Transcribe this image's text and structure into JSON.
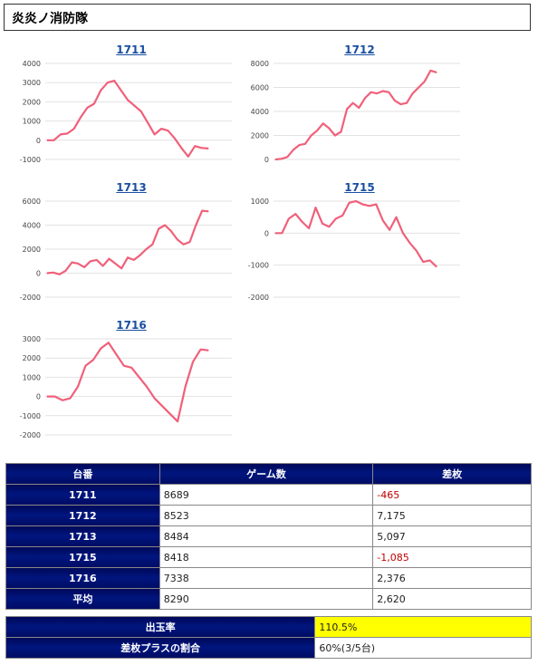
{
  "page_title": "炎炎ノ消防隊",
  "colors": {
    "line": "#f0607a",
    "header_bg": "#00157f",
    "highlight": "#ffff00",
    "negative": "#c00000"
  },
  "chart_data": [
    {
      "type": "line",
      "title": "1711",
      "ylim": [
        -1000,
        4000
      ],
      "yticks": [
        4000,
        3000,
        2000,
        1000,
        0,
        -1000
      ],
      "values": [
        0,
        0,
        300,
        350,
        600,
        1200,
        1700,
        1900,
        2600,
        3000,
        3100,
        2600,
        2100,
        1800,
        1500,
        900,
        300,
        600,
        500,
        100,
        -400,
        -850,
        -300,
        -400,
        -430
      ]
    },
    {
      "type": "line",
      "title": "1712",
      "ylim": [
        0,
        8000
      ],
      "yticks": [
        8000,
        6000,
        4000,
        2000,
        0
      ],
      "values": [
        0,
        50,
        200,
        800,
        1200,
        1300,
        2000,
        2400,
        3000,
        2600,
        2000,
        2300,
        4200,
        4700,
        4300,
        5100,
        5600,
        5500,
        5700,
        5600,
        4900,
        4600,
        4700,
        5500,
        6000,
        6500,
        7400,
        7250
      ]
    },
    {
      "type": "line",
      "title": "1713",
      "ylim": [
        -2000,
        6000
      ],
      "yticks": [
        6000,
        4000,
        2000,
        0,
        -2000
      ],
      "values": [
        0,
        50,
        -100,
        200,
        900,
        800,
        500,
        1000,
        1100,
        600,
        1200,
        800,
        400,
        1300,
        1100,
        1500,
        2000,
        2400,
        3700,
        4000,
        3500,
        2800,
        2400,
        2600,
        4000,
        5200,
        5150
      ]
    },
    {
      "type": "line",
      "title": "1715",
      "ylim": [
        -2000,
        1000
      ],
      "yticks": [
        1000,
        0,
        -1000,
        -2000
      ],
      "values": [
        0,
        0,
        450,
        600,
        350,
        150,
        800,
        300,
        200,
        450,
        550,
        950,
        1000,
        900,
        850,
        900,
        400,
        100,
        500,
        0,
        -300,
        -550,
        -900,
        -850,
        -1050
      ]
    },
    {
      "type": "line",
      "title": "1716",
      "ylim": [
        -2000,
        3000
      ],
      "yticks": [
        3000,
        2000,
        1000,
        0,
        -1000,
        -2000
      ],
      "values": [
        0,
        0,
        -200,
        -100,
        500,
        1600,
        1900,
        2500,
        2800,
        2200,
        1600,
        1500,
        1000,
        500,
        -100,
        -500,
        -900,
        -1300,
        500,
        1800,
        2450,
        2400
      ]
    }
  ],
  "table": {
    "headers": [
      "台番",
      "ゲーム数",
      "差枚"
    ],
    "rows": [
      {
        "id": "1711",
        "games": "8689",
        "diff": "-465",
        "neg": true
      },
      {
        "id": "1712",
        "games": "8523",
        "diff": "7,175",
        "neg": false
      },
      {
        "id": "1713",
        "games": "8484",
        "diff": "5,097",
        "neg": false
      },
      {
        "id": "1715",
        "games": "8418",
        "diff": "-1,085",
        "neg": true
      },
      {
        "id": "1716",
        "games": "7338",
        "diff": "2,376",
        "neg": false
      },
      {
        "id": "平均",
        "games": "8290",
        "diff": "2,620",
        "neg": false
      }
    ]
  },
  "summary": {
    "payout_label": "出玉率",
    "payout_value": "110.5%",
    "plus_label": "差枚プラスの割合",
    "plus_value": "60%(3/5台)"
  }
}
